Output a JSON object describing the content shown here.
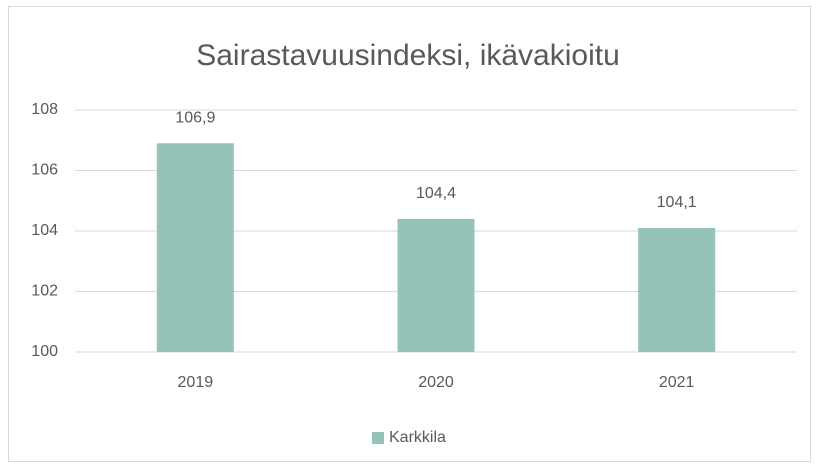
{
  "chart_data": {
    "type": "bar",
    "title": "Sairastavuusindeksi, ikävakioitu",
    "categories": [
      "2019",
      "2020",
      "2021"
    ],
    "series": [
      {
        "name": "Karkkila",
        "color": "#96c3b8",
        "values": [
          106.9,
          104.4,
          104.1
        ],
        "value_labels": [
          "106,9",
          "104,4",
          "104,1"
        ]
      }
    ],
    "ylim": [
      100,
      108
    ],
    "yticks": [
      100,
      102,
      104,
      106,
      108
    ],
    "grid": true,
    "legend": "bottom"
  }
}
